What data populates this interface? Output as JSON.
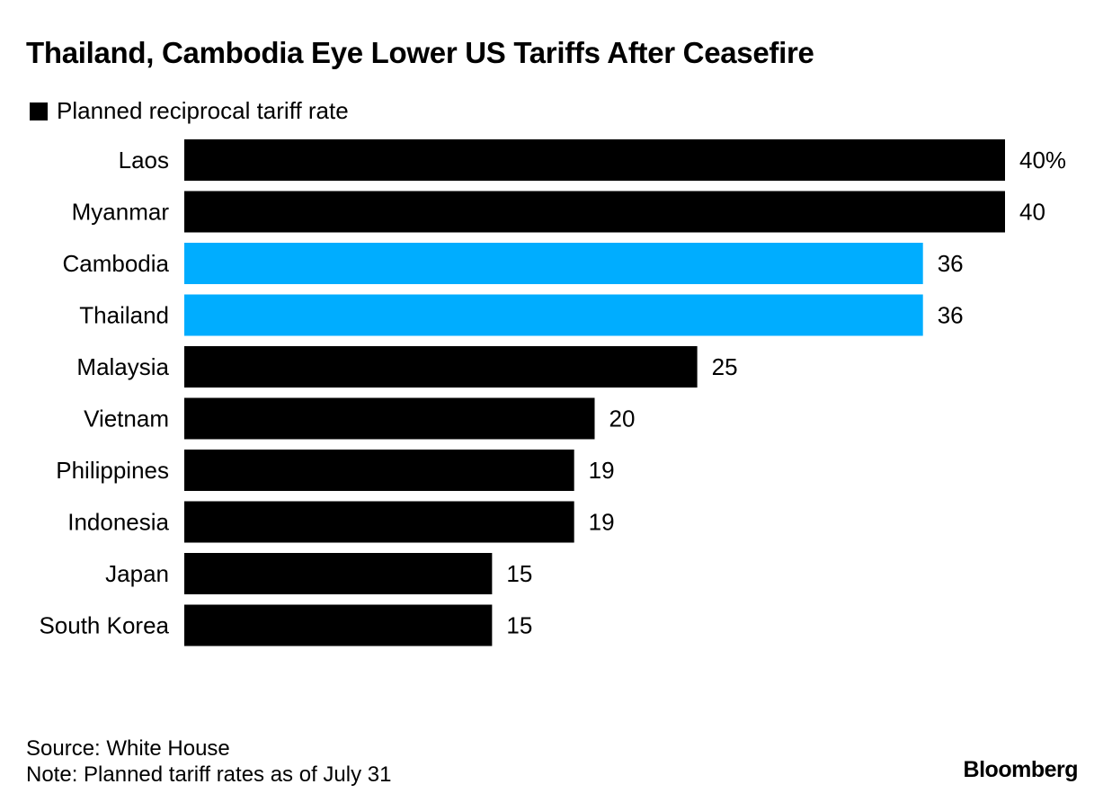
{
  "chart_data": {
    "type": "bar",
    "orientation": "horizontal",
    "title": "Thailand, Cambodia Eye Lower US Tariffs After Ceasefire",
    "legend": [
      "Planned reciprocal tariff rate"
    ],
    "legend_position": "top-left",
    "categories": [
      "Laos",
      "Myanmar",
      "Cambodia",
      "Thailand",
      "Malaysia",
      "Vietnam",
      "Philippines",
      "Indonesia",
      "Japan",
      "South Korea"
    ],
    "values": [
      40,
      40,
      36,
      36,
      25,
      20,
      19,
      19,
      15,
      15
    ],
    "value_labels": [
      "40%",
      "40",
      "36",
      "36",
      "25",
      "20",
      "19",
      "19",
      "15",
      "15"
    ],
    "highlighted": [
      "Cambodia",
      "Thailand"
    ],
    "colors": {
      "default": "#000000",
      "highlight": "#00adff"
    },
    "unit": "%",
    "xlim": [
      0,
      40
    ],
    "grid": false,
    "xlabel": "",
    "ylabel": ""
  },
  "footer": {
    "source": "Source: White House",
    "note": "Note: Planned tariff rates as of July 31",
    "brand": "Bloomberg"
  }
}
